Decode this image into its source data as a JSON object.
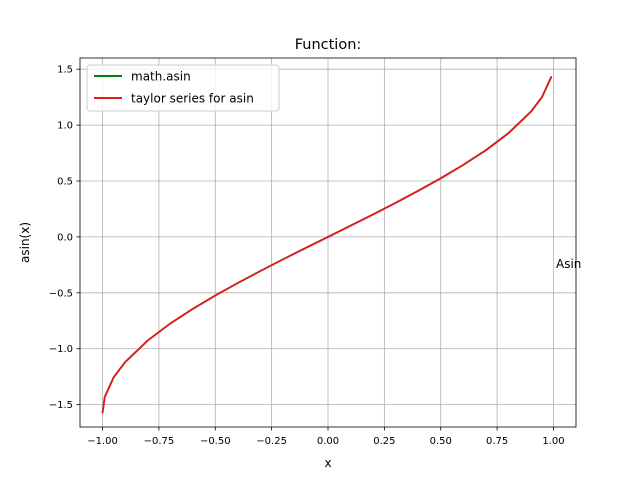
{
  "chart_data": {
    "type": "line",
    "title": "Function:",
    "xlabel": "x",
    "ylabel": "asin(x)",
    "annotation": "Asin",
    "xlim": [
      -1.1,
      1.1
    ],
    "ylim": [
      -1.7,
      1.6
    ],
    "xticks": [
      -1.0,
      -0.75,
      -0.5,
      -0.25,
      0.0,
      0.25,
      0.5,
      0.75,
      1.0
    ],
    "xtick_labels": [
      "−1.00",
      "−0.75",
      "−0.50",
      "−0.25",
      "0.00",
      "0.25",
      "0.50",
      "0.75",
      "1.00"
    ],
    "yticks": [
      -1.5,
      -1.0,
      -0.5,
      0.0,
      0.5,
      1.0,
      1.5
    ],
    "ytick_labels": [
      "−1.5",
      "−1.0",
      "−0.5",
      "0.0",
      "0.5",
      "1.0",
      "1.5"
    ],
    "grid": true,
    "legend_position": "upper-left",
    "series": [
      {
        "name": "math.asin",
        "color": "#008000",
        "x": [
          -1.0,
          -0.99,
          -0.95,
          -0.9,
          -0.8,
          -0.7,
          -0.6,
          -0.5,
          -0.4,
          -0.3,
          -0.2,
          -0.1,
          0.0,
          0.1,
          0.2,
          0.3,
          0.4,
          0.5,
          0.6,
          0.7,
          0.8,
          0.9,
          0.95,
          0.99
        ],
        "y": [
          -1.571,
          -1.429,
          -1.253,
          -1.12,
          -0.927,
          -0.775,
          -0.644,
          -0.524,
          -0.412,
          -0.305,
          -0.201,
          -0.1,
          0.0,
          0.1,
          0.201,
          0.305,
          0.412,
          0.524,
          0.644,
          0.775,
          0.927,
          1.12,
          1.253,
          1.429
        ]
      },
      {
        "name": "taylor series for asin",
        "color": "#e31a1c",
        "x": [
          -1.0,
          -0.99,
          -0.95,
          -0.9,
          -0.8,
          -0.7,
          -0.6,
          -0.5,
          -0.4,
          -0.3,
          -0.2,
          -0.1,
          0.0,
          0.1,
          0.2,
          0.3,
          0.4,
          0.5,
          0.6,
          0.7,
          0.8,
          0.9,
          0.95,
          0.99
        ],
        "y": [
          -1.571,
          -1.429,
          -1.253,
          -1.12,
          -0.927,
          -0.775,
          -0.644,
          -0.524,
          -0.412,
          -0.305,
          -0.201,
          -0.1,
          0.0,
          0.1,
          0.201,
          0.305,
          0.412,
          0.524,
          0.644,
          0.775,
          0.927,
          1.12,
          1.253,
          1.429
        ]
      }
    ]
  }
}
